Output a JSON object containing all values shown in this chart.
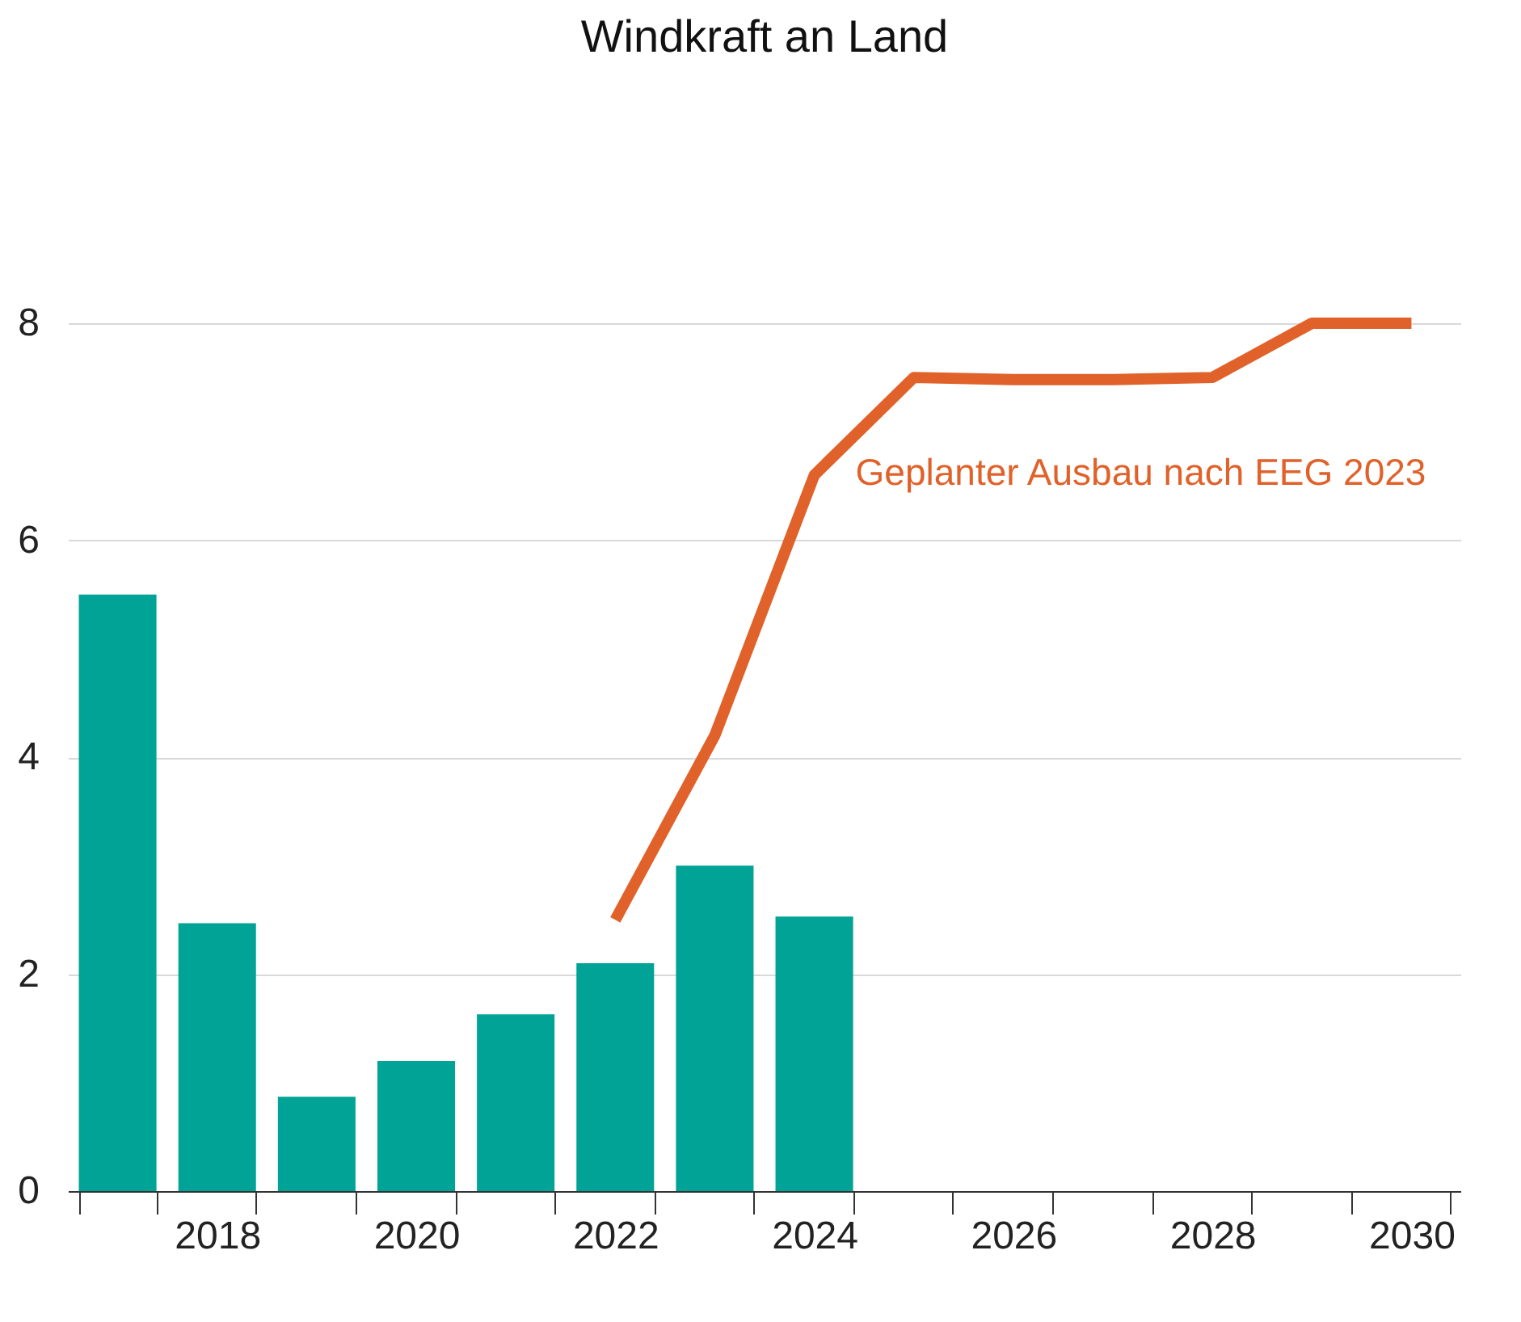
{
  "chart_data": {
    "type": "bar",
    "title": "Windkraft an Land",
    "categories": [
      null,
      "2018",
      null,
      "2020",
      null,
      "2022",
      null,
      "2024",
      null,
      "2026",
      null,
      "2028",
      null,
      "2030"
    ],
    "series": [
      {
        "color": "#00a396",
        "values": [
          5.5,
          2.47,
          0.87,
          1.2,
          1.63,
          2.1,
          3.0,
          2.53,
          null,
          null,
          null,
          null,
          null,
          null
        ]
      },
      {
        "type": "line",
        "name": "Geplanter Ausbau nach EEG 2023",
        "color": "#e0622a",
        "values": [
          null,
          null,
          null,
          null,
          null,
          2.5,
          4.2,
          6.6,
          7.5,
          7.48,
          7.48,
          7.5,
          8.0,
          8.0
        ]
      }
    ],
    "ylim": [
      0,
      8
    ],
    "yticks": [
      0,
      2,
      4,
      6,
      8
    ],
    "grid": "y",
    "legend": false
  }
}
